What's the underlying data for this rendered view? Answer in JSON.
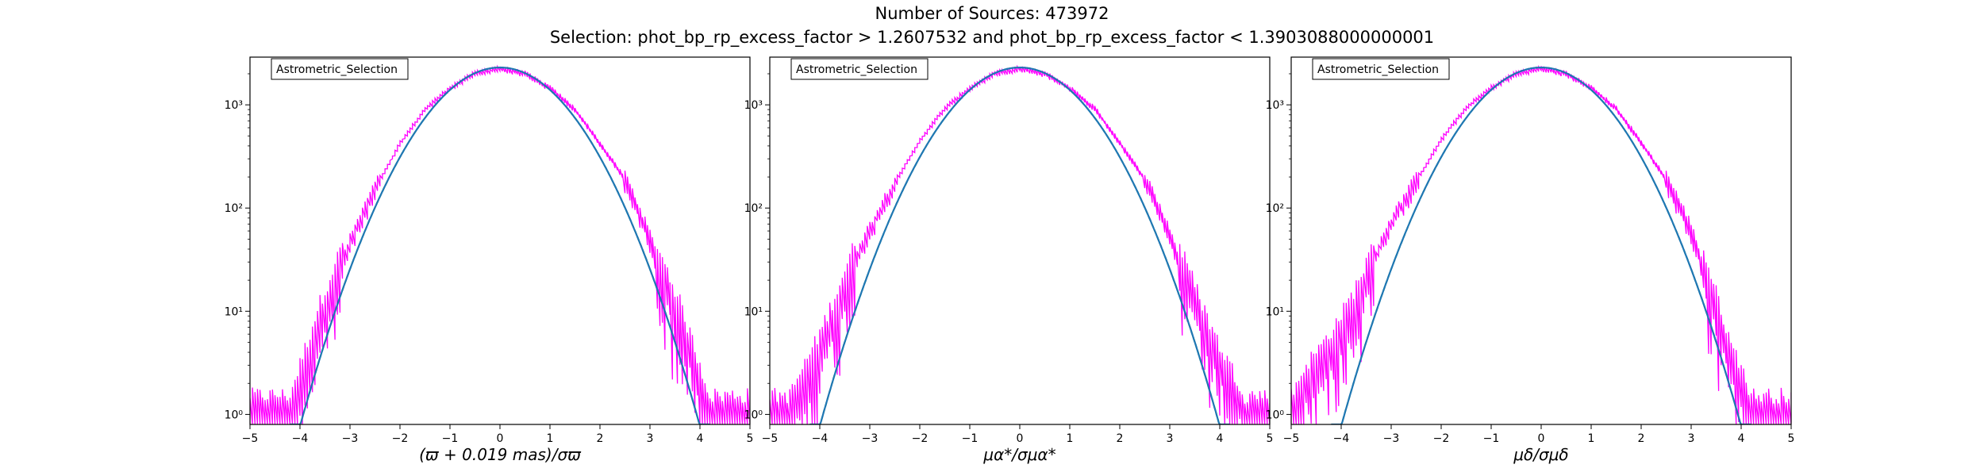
{
  "figure": {
    "title_line1": "Number of Sources: 473972",
    "title_line2": "Selection: phot_bp_rp_excess_factor > 1.2607532 and phot_bp_rp_excess_factor < 1.3903088000000001"
  },
  "colors": {
    "histogram": "#ff00ff",
    "gaussian": "#1f77b4",
    "model": "#2ca02c"
  },
  "chart_data": [
    {
      "type": "line",
      "panel": "parallax",
      "legend": "Astrometric_Selection",
      "legend_placement": "upper-left",
      "xlabel": "(ϖ + 0.019 mas)/σϖ",
      "xlim": [
        -5,
        5
      ],
      "ylim": [
        0.8,
        2900
      ],
      "yscale": "log",
      "xticks": [
        "−5",
        "−4",
        "−3",
        "−2",
        "−1",
        "0",
        "1",
        "2",
        "3",
        "4",
        "5"
      ],
      "yticks": [
        {
          "value": 1,
          "label": "10⁰"
        },
        {
          "value": 10,
          "label": "10¹"
        },
        {
          "value": 100,
          "label": "10²"
        },
        {
          "value": 1000,
          "label": "10³"
        }
      ],
      "series": [
        {
          "kind": "histogram",
          "x": [
            -4.4,
            -4.2,
            -4.0,
            -3.8,
            -3.6,
            -3.4,
            -3.2,
            -3.0,
            -2.6,
            -2.0,
            -1.5,
            -1.0,
            -0.5,
            0.0,
            0.5,
            1.0,
            1.5,
            2.0,
            2.5,
            3.0,
            3.2,
            3.4,
            3.6,
            3.8,
            4.0,
            4.2,
            4.5
          ],
          "y": [
            1,
            1,
            2,
            4,
            8,
            14,
            25,
            45,
            120,
            420,
            900,
            1450,
            2000,
            2250,
            2000,
            1450,
            900,
            420,
            190,
            50,
            25,
            14,
            8,
            4,
            2,
            1,
            1
          ]
        },
        {
          "kind": "gaussian",
          "amplitude": 2300,
          "mean": 0.0,
          "sigma": 1.0,
          "x_range": [
            -4.2,
            4.2
          ]
        }
      ]
    },
    {
      "type": "line",
      "panel": "pmra",
      "legend": "Astrometric_Selection",
      "legend_placement": "upper-left",
      "xlabel": "μα*/σμα*",
      "xlim": [
        -5,
        5
      ],
      "ylim": [
        0.8,
        2900
      ],
      "yscale": "log",
      "xticks": [
        "−5",
        "−4",
        "−3",
        "−2",
        "−1",
        "0",
        "1",
        "2",
        "3",
        "4",
        "5"
      ],
      "yticks": [
        {
          "value": 1,
          "label": "10⁰"
        },
        {
          "value": 10,
          "label": "10¹"
        },
        {
          "value": 100,
          "label": "10²"
        },
        {
          "value": 1000,
          "label": "10³"
        }
      ],
      "series": [
        {
          "kind": "histogram",
          "x": [
            -4.9,
            -4.6,
            -4.3,
            -4.0,
            -3.8,
            -3.6,
            -3.4,
            -3.2,
            -3.0,
            -2.6,
            -2.0,
            -1.5,
            -1.0,
            -0.5,
            0.0,
            0.5,
            1.0,
            1.5,
            2.0,
            2.5,
            3.0,
            3.2,
            3.4,
            3.6,
            3.8,
            4.0,
            4.2,
            4.5,
            4.9
          ],
          "y": [
            1,
            1,
            2,
            4,
            7,
            12,
            22,
            40,
            60,
            140,
            450,
            920,
            1450,
            2000,
            2250,
            2000,
            1450,
            920,
            430,
            190,
            55,
            28,
            16,
            9,
            5,
            3,
            2,
            1,
            1
          ]
        },
        {
          "kind": "gaussian",
          "amplitude": 2300,
          "mean": 0.0,
          "sigma": 1.0,
          "x_range": [
            -4.2,
            4.2
          ]
        }
      ]
    },
    {
      "type": "line",
      "panel": "pmdec",
      "legend": "Astrometric_Selection",
      "legend_placement": "upper-left",
      "xlabel": "μδ/σμδ",
      "xlim": [
        -5,
        5
      ],
      "ylim": [
        0.8,
        2900
      ],
      "yscale": "log",
      "xticks": [
        "−5",
        "−4",
        "−3",
        "−2",
        "−1",
        "0",
        "1",
        "2",
        "3",
        "4",
        "5"
      ],
      "yticks": [
        {
          "value": 1,
          "label": "10⁰"
        },
        {
          "value": 10,
          "label": "10¹"
        },
        {
          "value": 100,
          "label": "10²"
        },
        {
          "value": 1000,
          "label": "10³"
        }
      ],
      "series": [
        {
          "kind": "histogram",
          "x": [
            -5.0,
            -4.7,
            -4.4,
            -4.1,
            -3.8,
            -3.6,
            -3.4,
            -3.2,
            -3.0,
            -2.6,
            -2.0,
            -1.5,
            -1.0,
            -0.5,
            0.0,
            0.5,
            1.0,
            1.5,
            2.0,
            2.5,
            3.0,
            3.2,
            3.4,
            3.6,
            3.8,
            4.0,
            4.2,
            4.5,
            4.9
          ],
          "y": [
            1,
            2,
            3,
            5,
            9,
            15,
            25,
            45,
            70,
            150,
            460,
            930,
            1450,
            2000,
            2250,
            2000,
            1450,
            920,
            430,
            190,
            60,
            30,
            14,
            7,
            3,
            2,
            1,
            1,
            1
          ]
        },
        {
          "kind": "gaussian",
          "amplitude": 2300,
          "mean": 0.0,
          "sigma": 1.0,
          "x_range": [
            -4.2,
            4.2
          ]
        }
      ]
    }
  ]
}
